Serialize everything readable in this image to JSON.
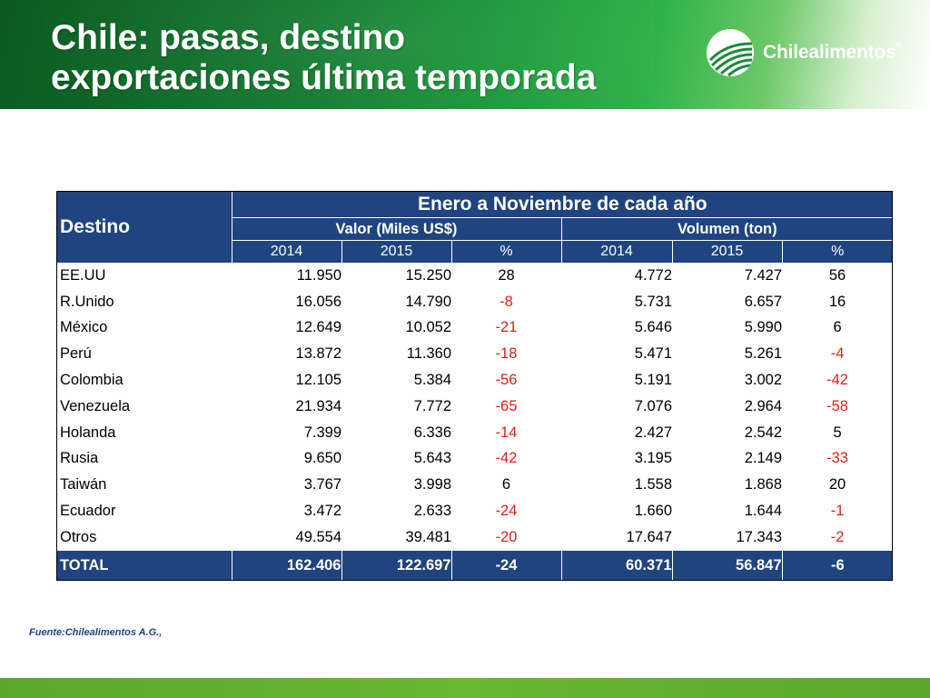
{
  "title": {
    "line1": "Chile: pasas, destino",
    "line2": "exportaciones última temporada"
  },
  "logo": {
    "text": "Chilealimentos",
    "reg": "®"
  },
  "table": {
    "dest_header": "Destino",
    "period_header": "Enero a Noviembre de cada año",
    "group_valor": "Valor (Miles US$)",
    "group_volumen": "Volumen (ton)",
    "subheaders": [
      "2014",
      "2015",
      "%",
      "2014",
      "2015",
      "%"
    ],
    "rows": [
      {
        "dest": "EE.UU",
        "v2014": "11.950",
        "v2015": "15.250",
        "vpct": "28",
        "t2014": "4.772",
        "t2015": "7.427",
        "tpct": "56"
      },
      {
        "dest": "R.Unido",
        "v2014": "16.056",
        "v2015": "14.790",
        "vpct": "-8",
        "t2014": "5.731",
        "t2015": "6.657",
        "tpct": "16"
      },
      {
        "dest": "México",
        "v2014": "12.649",
        "v2015": "10.052",
        "vpct": "-21",
        "t2014": "5.646",
        "t2015": "5.990",
        "tpct": "6"
      },
      {
        "dest": "Perú",
        "v2014": "13.872",
        "v2015": "11.360",
        "vpct": "-18",
        "t2014": "5.471",
        "t2015": "5.261",
        "tpct": "-4"
      },
      {
        "dest": "Colombia",
        "v2014": "12.105",
        "v2015": "5.384",
        "vpct": "-56",
        "t2014": "5.191",
        "t2015": "3.002",
        "tpct": "-42"
      },
      {
        "dest": "Venezuela",
        "v2014": "21.934",
        "v2015": "7.772",
        "vpct": "-65",
        "t2014": "7.076",
        "t2015": "2.964",
        "tpct": "-58"
      },
      {
        "dest": "Holanda",
        "v2014": "7.399",
        "v2015": "6.336",
        "vpct": "-14",
        "t2014": "2.427",
        "t2015": "2.542",
        "tpct": "5"
      },
      {
        "dest": "Rusia",
        "v2014": "9.650",
        "v2015": "5.643",
        "vpct": "-42",
        "t2014": "3.195",
        "t2015": "2.149",
        "tpct": "-33"
      },
      {
        "dest": "Taiwán",
        "v2014": "3.767",
        "v2015": "3.998",
        "vpct": "6",
        "t2014": "1.558",
        "t2015": "1.868",
        "tpct": "20"
      },
      {
        "dest": "Ecuador",
        "v2014": "3.472",
        "v2015": "2.633",
        "vpct": "-24",
        "t2014": "1.660",
        "t2015": "1.644",
        "tpct": "-1"
      },
      {
        "dest": "Otros",
        "v2014": "49.554",
        "v2015": "39.481",
        "vpct": "-20",
        "t2014": "17.647",
        "t2015": "17.343",
        "tpct": "-2"
      }
    ],
    "total": {
      "dest": "TOTAL",
      "v2014": "162.406",
      "v2015": "122.697",
      "vpct": "-24",
      "t2014": "60.371",
      "t2015": "56.847",
      "tpct": "-6"
    }
  },
  "source": "Fuente:Chilealimentos A.G.,",
  "colors": {
    "header_green": "#117a2e",
    "table_blue": "#1f4480",
    "negative_red": "#e0201a",
    "footer_green": "#5aa72c"
  }
}
